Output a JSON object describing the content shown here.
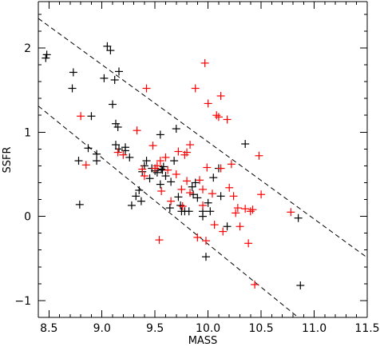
{
  "chart_data": {
    "type": "scatter",
    "title": "",
    "xlabel": "MASS",
    "ylabel": "SSFR",
    "xlim": [
      8.4,
      11.5
    ],
    "ylim": [
      -1.2,
      2.55
    ],
    "x_ticks": [
      8.5,
      9.0,
      9.5,
      10.0,
      10.5,
      11.0,
      11.5
    ],
    "x_tick_labels": [
      "8.5",
      "9.0",
      "9.5",
      "10.0",
      "10.5",
      "11.0",
      "11.5"
    ],
    "y_ticks": [
      -1,
      0,
      1,
      2
    ],
    "y_tick_labels": [
      "−1",
      "0",
      "1",
      "2"
    ],
    "grid": false,
    "marker": "plus",
    "series": [
      {
        "color": "#000000",
        "points": [
          [
            8.47,
            1.88
          ],
          [
            8.48,
            1.92
          ],
          [
            8.72,
            1.52
          ],
          [
            8.73,
            1.71
          ],
          [
            8.78,
            0.66
          ],
          [
            8.79,
            0.14
          ],
          [
            8.87,
            0.81
          ],
          [
            8.9,
            1.19
          ],
          [
            8.95,
            0.74
          ],
          [
            8.95,
            0.66
          ],
          [
            9.02,
            1.64
          ],
          [
            9.05,
            2.02
          ],
          [
            9.08,
            1.97
          ],
          [
            9.1,
            1.33
          ],
          [
            9.12,
            1.62
          ],
          [
            9.13,
            1.1
          ],
          [
            9.15,
            1.06
          ],
          [
            9.13,
            0.85
          ],
          [
            9.16,
            0.8
          ],
          [
            9.16,
            1.72
          ],
          [
            9.22,
            0.82
          ],
          [
            9.22,
            0.78
          ],
          [
            9.26,
            0.7
          ],
          [
            9.28,
            0.13
          ],
          [
            9.32,
            0.24
          ],
          [
            9.35,
            0.31
          ],
          [
            9.37,
            0.18
          ],
          [
            9.38,
            0.53
          ],
          [
            9.4,
            0.6
          ],
          [
            9.42,
            0.66
          ],
          [
            9.45,
            0.45
          ],
          [
            9.47,
            0.57
          ],
          [
            9.5,
            0.54
          ],
          [
            9.52,
            0.52
          ],
          [
            9.55,
            0.97
          ],
          [
            9.55,
            0.38
          ],
          [
            9.56,
            0.56
          ],
          [
            9.57,
            0.55
          ],
          [
            9.58,
            0.59
          ],
          [
            9.6,
            0.48
          ],
          [
            9.64,
            0.1
          ],
          [
            9.65,
            0.41
          ],
          [
            9.68,
            0.66
          ],
          [
            9.7,
            1.04
          ],
          [
            9.72,
            0.23
          ],
          [
            9.74,
            0.13
          ],
          [
            9.75,
            0.06
          ],
          [
            9.78,
            0.06
          ],
          [
            9.82,
            0.06
          ],
          [
            9.85,
            0.35
          ],
          [
            9.86,
            0.26
          ],
          [
            9.88,
            0.4
          ],
          [
            9.9,
            0.22
          ],
          [
            9.95,
            0.0
          ],
          [
            9.95,
            0.06
          ],
          [
            9.98,
            -0.48
          ],
          [
            10.0,
            0.16
          ],
          [
            10.02,
            0.06
          ],
          [
            10.05,
            0.46
          ],
          [
            10.1,
            0.57
          ],
          [
            10.12,
            0.24
          ],
          [
            10.18,
            -0.12
          ],
          [
            10.35,
            0.86
          ],
          [
            10.85,
            -0.02
          ],
          [
            10.87,
            -0.82
          ]
        ]
      },
      {
        "color": "#ff0000",
        "points": [
          [
            8.8,
            1.19
          ],
          [
            8.85,
            0.61
          ],
          [
            9.15,
            0.76
          ],
          [
            9.2,
            0.73
          ],
          [
            9.33,
            1.02
          ],
          [
            9.38,
            0.56
          ],
          [
            9.4,
            0.48
          ],
          [
            9.42,
            1.52
          ],
          [
            9.48,
            0.84
          ],
          [
            9.5,
            0.57
          ],
          [
            9.52,
            0.6
          ],
          [
            9.54,
            -0.28
          ],
          [
            9.55,
            0.66
          ],
          [
            9.56,
            0.3
          ],
          [
            9.6,
            0.7
          ],
          [
            9.62,
            0.55
          ],
          [
            9.65,
            0.18
          ],
          [
            9.7,
            0.5
          ],
          [
            9.72,
            0.77
          ],
          [
            9.75,
            0.32
          ],
          [
            9.76,
            0.12
          ],
          [
            9.78,
            0.73
          ],
          [
            9.8,
            0.76
          ],
          [
            9.8,
            0.42
          ],
          [
            9.83,
            0.85
          ],
          [
            9.83,
            0.28
          ],
          [
            9.88,
            1.52
          ],
          [
            9.9,
            -0.25
          ],
          [
            9.92,
            0.43
          ],
          [
            9.95,
            0.32
          ],
          [
            9.95,
            0.13
          ],
          [
            9.97,
            1.82
          ],
          [
            9.98,
            -0.29
          ],
          [
            9.99,
            0.58
          ],
          [
            10.0,
            1.34
          ],
          [
            10.04,
            0.27
          ],
          [
            10.06,
            -0.1
          ],
          [
            10.08,
            1.2
          ],
          [
            10.1,
            1.18
          ],
          [
            10.12,
            1.43
          ],
          [
            10.12,
            0.57
          ],
          [
            10.14,
            -0.18
          ],
          [
            10.18,
            1.15
          ],
          [
            10.2,
            0.34
          ],
          [
            10.22,
            0.62
          ],
          [
            10.24,
            0.24
          ],
          [
            10.26,
            0.04
          ],
          [
            10.28,
            0.1
          ],
          [
            10.3,
            -0.12
          ],
          [
            10.35,
            0.09
          ],
          [
            10.38,
            -0.32
          ],
          [
            10.4,
            0.06
          ],
          [
            10.42,
            0.08
          ],
          [
            10.44,
            -0.81
          ],
          [
            10.48,
            0.72
          ],
          [
            10.5,
            0.26
          ],
          [
            10.78,
            0.05
          ]
        ]
      }
    ],
    "reference_lines": [
      {
        "style": "dashed",
        "color": "#000000",
        "x": [
          8.4,
          11.5
        ],
        "y": [
          2.35,
          -0.49
        ]
      },
      {
        "style": "dashed",
        "color": "#000000",
        "x": [
          8.4,
          10.85
        ],
        "y": [
          1.31,
          -1.2
        ]
      }
    ]
  }
}
